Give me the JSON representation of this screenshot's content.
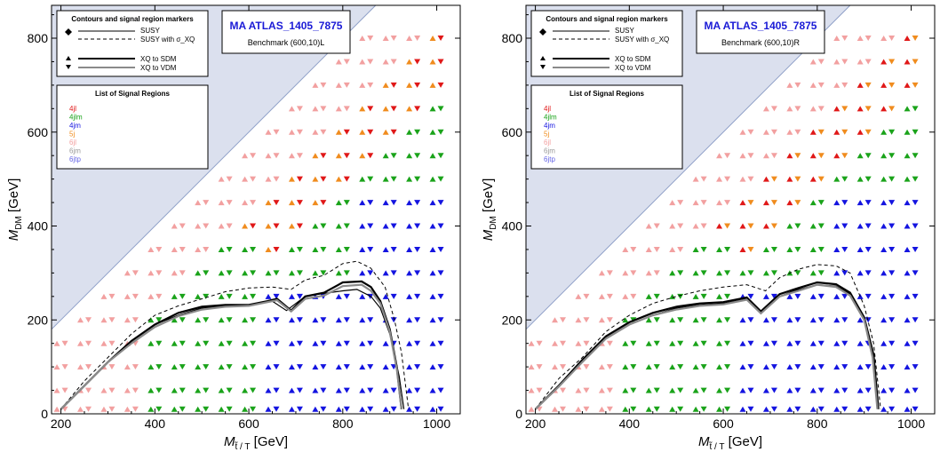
{
  "chart_data": [
    {
      "type": "scatter",
      "title": "MA ATLAS_1405_7875",
      "subtitle": "Benchmark (600,10)L",
      "xlabel": "M_{t̃/T} [GeV]",
      "ylabel": "M_DM [GeV]",
      "xlim": [
        180,
        1050
      ],
      "ylim": [
        0,
        870
      ],
      "xticks": [
        "200",
        "400",
        "600",
        "800",
        "1000"
      ],
      "yticks": [
        "0",
        "200",
        "400",
        "600",
        "800"
      ],
      "shaded_region": "M_DM > M_t",
      "legend_markers": {
        "title": "Contours and signal region markers",
        "entries": [
          "SUSY",
          "SUSY with σ_XQ",
          "XQ to SDM",
          "XQ to VDM"
        ]
      },
      "legend_regions": {
        "title": "List of Signal Regions",
        "entries": [
          "4jl",
          "4jlm",
          "4jm",
          "5j",
          "6jl",
          "6jm",
          "6jtp"
        ]
      },
      "contours": {
        "SUSY": [
          [
            200,
            10
          ],
          [
            250,
            60
          ],
          [
            300,
            110
          ],
          [
            350,
            155
          ],
          [
            400,
            190
          ],
          [
            450,
            210
          ],
          [
            500,
            225
          ],
          [
            550,
            230
          ],
          [
            600,
            230
          ],
          [
            650,
            240
          ],
          [
            680,
            220
          ],
          [
            720,
            250
          ],
          [
            750,
            255
          ],
          [
            800,
            262
          ],
          [
            830,
            265
          ],
          [
            860,
            250
          ],
          [
            880,
            225
          ],
          [
            900,
            170
          ],
          [
            920,
            80
          ],
          [
            930,
            10
          ]
        ],
        "SUSY with σ_XQ": [
          [
            200,
            10
          ],
          [
            250,
            70
          ],
          [
            300,
            120
          ],
          [
            350,
            170
          ],
          [
            400,
            210
          ],
          [
            450,
            230
          ],
          [
            500,
            245
          ],
          [
            550,
            260
          ],
          [
            600,
            268
          ],
          [
            650,
            270
          ],
          [
            690,
            265
          ],
          [
            720,
            285
          ],
          [
            760,
            295
          ],
          [
            800,
            320
          ],
          [
            830,
            325
          ],
          [
            860,
            310
          ],
          [
            890,
            270
          ],
          [
            910,
            200
          ],
          [
            925,
            130
          ],
          [
            940,
            10
          ]
        ],
        "XQ to SDM": [
          [
            200,
            10
          ],
          [
            250,
            60
          ],
          [
            300,
            110
          ],
          [
            350,
            155
          ],
          [
            400,
            190
          ],
          [
            450,
            215
          ],
          [
            500,
            228
          ],
          [
            550,
            232
          ],
          [
            600,
            232
          ],
          [
            640,
            240
          ],
          [
            660,
            245
          ],
          [
            690,
            220
          ],
          [
            720,
            250
          ],
          [
            760,
            258
          ],
          [
            800,
            280
          ],
          [
            840,
            282
          ],
          [
            860,
            270
          ],
          [
            880,
            240
          ],
          [
            900,
            180
          ],
          [
            915,
            100
          ],
          [
            925,
            10
          ]
        ],
        "XQ to VDM": [
          [
            200,
            10
          ],
          [
            250,
            60
          ],
          [
            300,
            110
          ],
          [
            350,
            150
          ],
          [
            400,
            185
          ],
          [
            450,
            208
          ],
          [
            500,
            222
          ],
          [
            550,
            228
          ],
          [
            600,
            230
          ],
          [
            640,
            238
          ],
          [
            660,
            242
          ],
          [
            690,
            218
          ],
          [
            720,
            245
          ],
          [
            760,
            252
          ],
          [
            800,
            272
          ],
          [
            840,
            275
          ],
          [
            860,
            262
          ],
          [
            880,
            235
          ],
          [
            900,
            175
          ],
          [
            915,
            95
          ],
          [
            925,
            10
          ]
        ]
      },
      "markers_note": "At each grid point (M_T, M_DM) a ▲ (XQ to SDM) and ▼ (XQ to VDM) marker colored by best signal region"
    },
    {
      "type": "scatter",
      "title": "MA ATLAS_1405_7875",
      "subtitle": "Benchmark (600,10)R",
      "xlabel": "M_{t̃/T} [GeV]",
      "ylabel": "M_DM [GeV]",
      "xlim": [
        180,
        1050
      ],
      "ylim": [
        0,
        870
      ],
      "xticks": [
        "200",
        "400",
        "600",
        "800",
        "1000"
      ],
      "yticks": [
        "0",
        "200",
        "400",
        "600",
        "800"
      ],
      "shaded_region": "M_DM > M_t",
      "legend_markers": {
        "title": "Contours and signal region markers",
        "entries": [
          "SUSY",
          "SUSY with σ_XQ",
          "XQ to SDM",
          "XQ to VDM"
        ]
      },
      "legend_regions": {
        "title": "List of Signal Regions",
        "entries": [
          "4jl",
          "4jlm",
          "4jm",
          "5j",
          "6jl",
          "6jm",
          "6jtp"
        ]
      },
      "contours": {
        "SUSY": [
          [
            200,
            10
          ],
          [
            250,
            60
          ],
          [
            300,
            110
          ],
          [
            350,
            160
          ],
          [
            400,
            190
          ],
          [
            450,
            210
          ],
          [
            500,
            225
          ],
          [
            550,
            232
          ],
          [
            600,
            235
          ],
          [
            650,
            245
          ],
          [
            680,
            215
          ],
          [
            720,
            250
          ],
          [
            750,
            262
          ],
          [
            800,
            275
          ],
          [
            840,
            272
          ],
          [
            870,
            255
          ],
          [
            900,
            200
          ],
          [
            920,
            120
          ],
          [
            930,
            10
          ]
        ],
        "SUSY with σ_XQ": [
          [
            200,
            10
          ],
          [
            250,
            75
          ],
          [
            300,
            120
          ],
          [
            350,
            175
          ],
          [
            400,
            210
          ],
          [
            450,
            235
          ],
          [
            500,
            250
          ],
          [
            550,
            262
          ],
          [
            600,
            270
          ],
          [
            650,
            275
          ],
          [
            690,
            262
          ],
          [
            720,
            290
          ],
          [
            760,
            308
          ],
          [
            800,
            318
          ],
          [
            840,
            315
          ],
          [
            870,
            300
          ],
          [
            900,
            230
          ],
          [
            920,
            150
          ],
          [
            935,
            10
          ]
        ],
        "XQ to SDM": [
          [
            200,
            10
          ],
          [
            250,
            60
          ],
          [
            300,
            115
          ],
          [
            350,
            165
          ],
          [
            400,
            195
          ],
          [
            450,
            215
          ],
          [
            500,
            228
          ],
          [
            550,
            235
          ],
          [
            600,
            238
          ],
          [
            650,
            248
          ],
          [
            680,
            218
          ],
          [
            720,
            255
          ],
          [
            760,
            268
          ],
          [
            800,
            280
          ],
          [
            840,
            276
          ],
          [
            870,
            258
          ],
          [
            900,
            205
          ],
          [
            920,
            125
          ],
          [
            930,
            10
          ]
        ],
        "XQ to VDM": [
          [
            200,
            10
          ],
          [
            250,
            58
          ],
          [
            300,
            110
          ],
          [
            350,
            160
          ],
          [
            400,
            190
          ],
          [
            450,
            210
          ],
          [
            500,
            222
          ],
          [
            550,
            230
          ],
          [
            600,
            233
          ],
          [
            650,
            243
          ],
          [
            680,
            214
          ],
          [
            720,
            250
          ],
          [
            760,
            262
          ],
          [
            800,
            275
          ],
          [
            840,
            270
          ],
          [
            870,
            252
          ],
          [
            900,
            200
          ],
          [
            918,
            120
          ],
          [
            928,
            10
          ]
        ]
      },
      "markers_note": "At each grid point (M_T, M_DM) a ▲ (XQ to SDM) and ▼ (XQ to VDM) marker colored by best signal region"
    }
  ],
  "colors": {
    "4jl": "#e01818",
    "4jlm": "#1aa31a",
    "4jm": "#1414e0",
    "5j": "#f08c1e",
    "6jl": "#f2a0a0",
    "6jm": "#9a9a9a",
    "6jtp": "#6464e6",
    "shade": "#dbe0ee"
  }
}
